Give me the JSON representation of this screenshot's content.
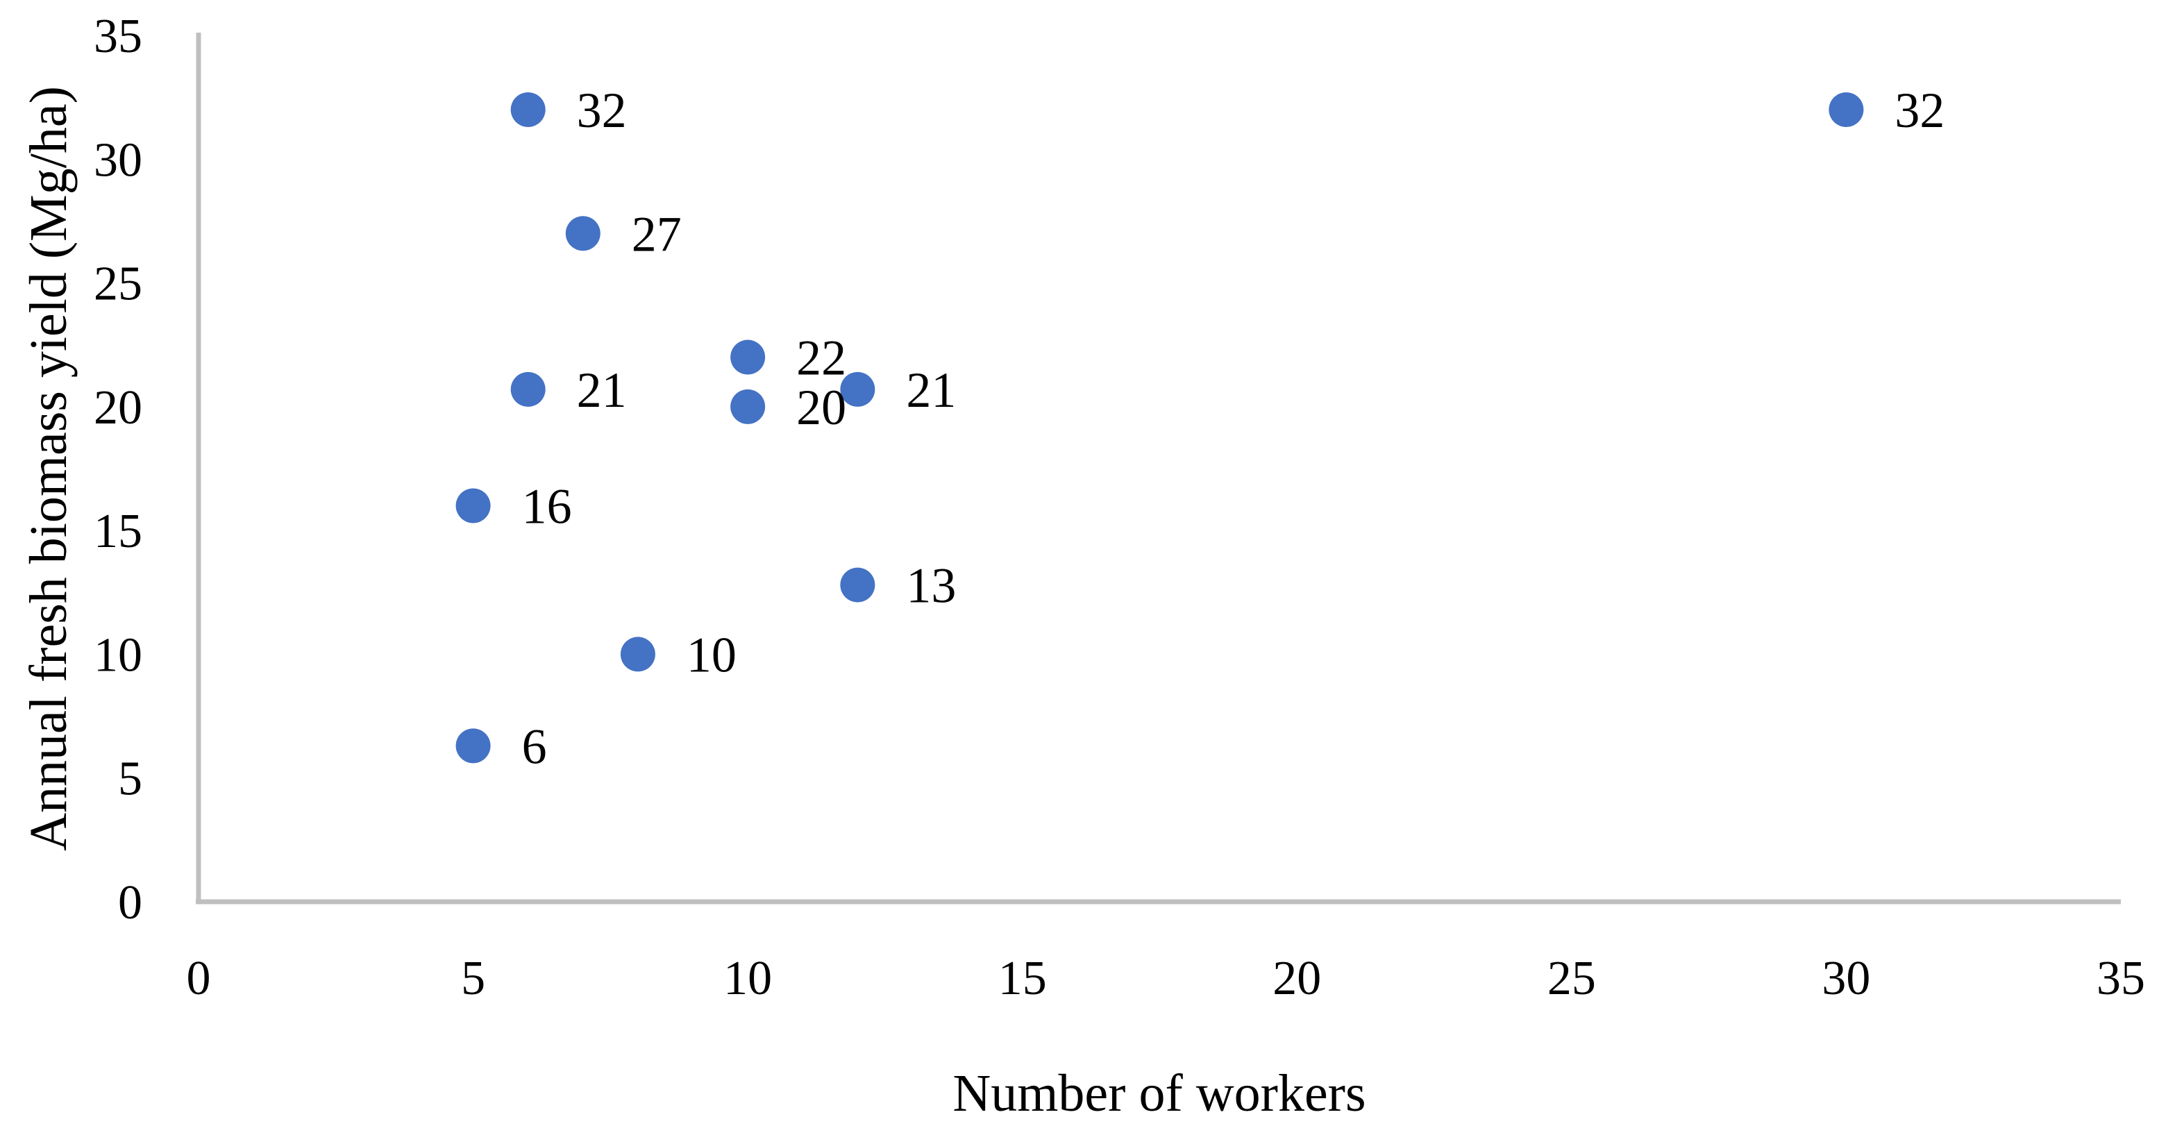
{
  "chart_data": {
    "type": "scatter",
    "title": "",
    "xlabel": "Number of workers",
    "ylabel": "Annual fresh biomass yield (Mg/ha)",
    "xlim": [
      0,
      35
    ],
    "ylim": [
      0,
      35
    ],
    "xticks": [
      0,
      5,
      10,
      15,
      20,
      25,
      30,
      35
    ],
    "yticks": [
      0,
      5,
      10,
      15,
      20,
      25,
      30,
      35
    ],
    "grid": false,
    "legend": false,
    "marker_color": "#4472C4",
    "axis_line_color": "#BFBFBF",
    "points": [
      {
        "x": 6,
        "y": 32,
        "label": "32"
      },
      {
        "x": 7,
        "y": 27,
        "label": "27"
      },
      {
        "x": 10,
        "y": 22,
        "label": "22"
      },
      {
        "x": 6,
        "y": 20.7,
        "label": "21"
      },
      {
        "x": 10,
        "y": 20,
        "label": "20"
      },
      {
        "x": 12,
        "y": 20.7,
        "label": "21"
      },
      {
        "x": 5,
        "y": 16,
        "label": "16"
      },
      {
        "x": 12,
        "y": 12.8,
        "label": "13"
      },
      {
        "x": 8,
        "y": 10,
        "label": "10"
      },
      {
        "x": 5,
        "y": 6.3,
        "label": "6"
      },
      {
        "x": 30,
        "y": 32,
        "label": "32"
      }
    ]
  }
}
